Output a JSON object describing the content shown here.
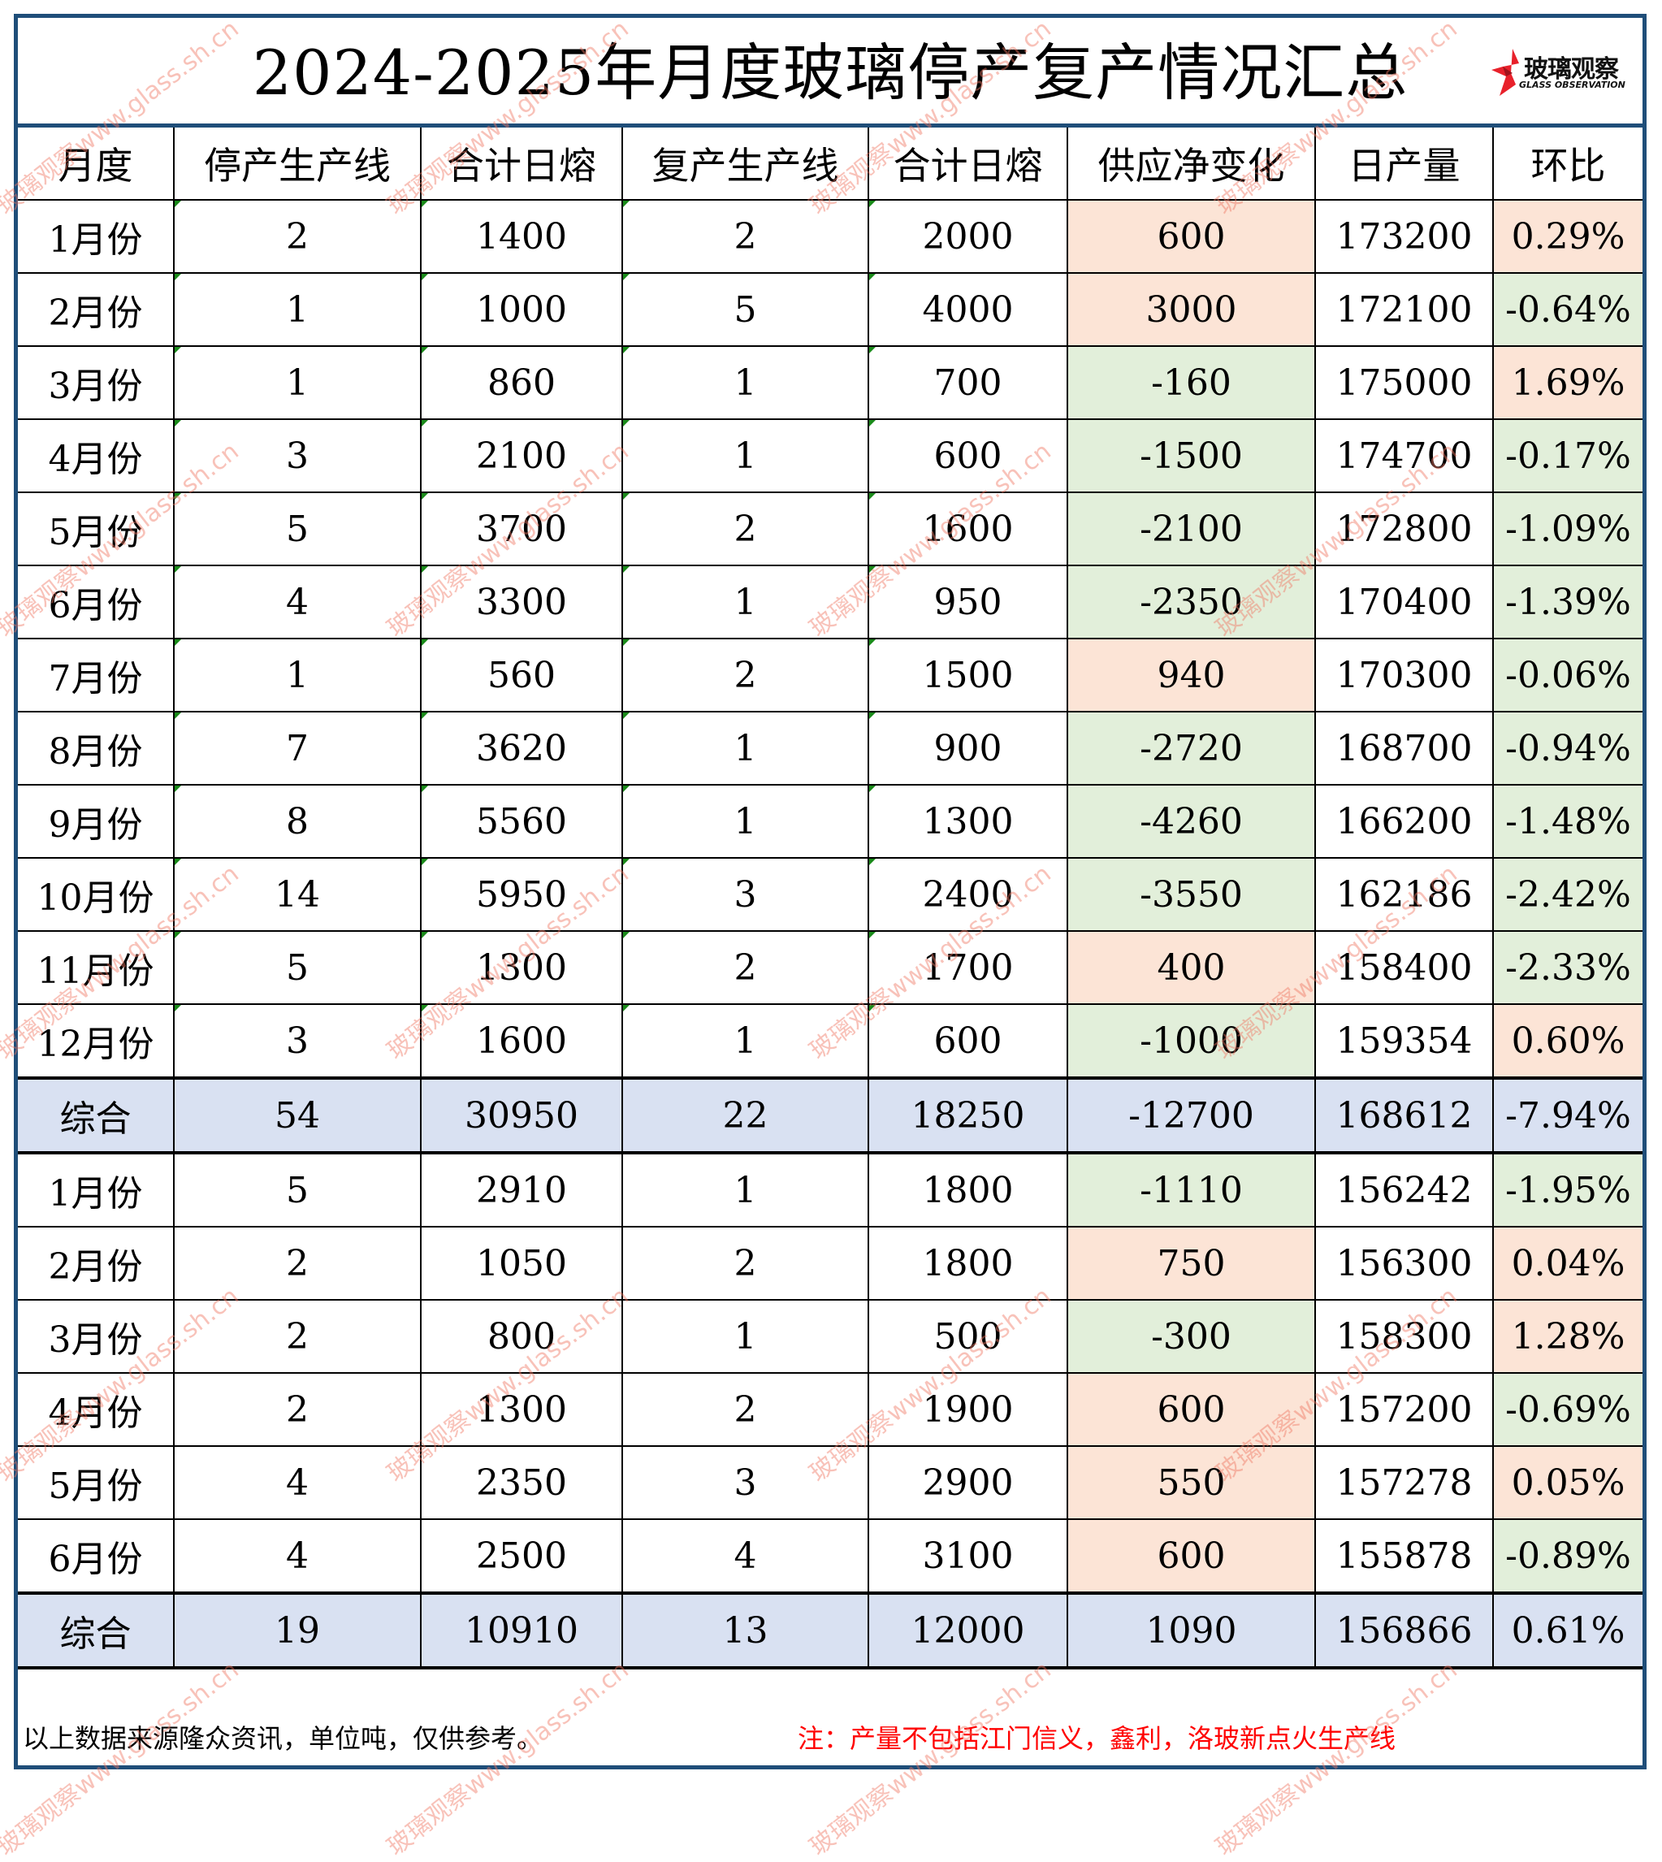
{
  "title": "2024-2025年月度玻璃停产复产情况汇总",
  "logo": {
    "icon": "red-star-logo-icon",
    "name_cn": "玻璃观察",
    "name_en": "GLASS OBSERVATION"
  },
  "colors": {
    "frame": "#1f4e79",
    "positive_fill": "#fce4d6",
    "negative_fill": "#e2efda",
    "summary_fill": "#d9e1f2",
    "note_text": "#ff0000"
  },
  "table": {
    "headers": [
      "月度",
      "停产生产线",
      "合计日熔",
      "复产生产线",
      "合计日熔",
      "供应净变化",
      "日产量",
      "环比"
    ],
    "rows": [
      {
        "month": "1月份",
        "stop_lines": "2",
        "stop_melt": "1400",
        "resume_lines": "2",
        "resume_melt": "2000",
        "net_change": "600",
        "daily_output": "173200",
        "mom": "0.29%"
      },
      {
        "month": "2月份",
        "stop_lines": "1",
        "stop_melt": "1000",
        "resume_lines": "5",
        "resume_melt": "4000",
        "net_change": "3000",
        "daily_output": "172100",
        "mom": "-0.64%"
      },
      {
        "month": "3月份",
        "stop_lines": "1",
        "stop_melt": "860",
        "resume_lines": "1",
        "resume_melt": "700",
        "net_change": "-160",
        "daily_output": "175000",
        "mom": "1.69%"
      },
      {
        "month": "4月份",
        "stop_lines": "3",
        "stop_melt": "2100",
        "resume_lines": "1",
        "resume_melt": "600",
        "net_change": "-1500",
        "daily_output": "174700",
        "mom": "-0.17%"
      },
      {
        "month": "5月份",
        "stop_lines": "5",
        "stop_melt": "3700",
        "resume_lines": "2",
        "resume_melt": "1600",
        "net_change": "-2100",
        "daily_output": "172800",
        "mom": "-1.09%"
      },
      {
        "month": "6月份",
        "stop_lines": "4",
        "stop_melt": "3300",
        "resume_lines": "1",
        "resume_melt": "950",
        "net_change": "-2350",
        "daily_output": "170400",
        "mom": "-1.39%"
      },
      {
        "month": "7月份",
        "stop_lines": "1",
        "stop_melt": "560",
        "resume_lines": "2",
        "resume_melt": "1500",
        "net_change": "940",
        "daily_output": "170300",
        "mom": "-0.06%"
      },
      {
        "month": "8月份",
        "stop_lines": "7",
        "stop_melt": "3620",
        "resume_lines": "1",
        "resume_melt": "900",
        "net_change": "-2720",
        "daily_output": "168700",
        "mom": "-0.94%"
      },
      {
        "month": "9月份",
        "stop_lines": "8",
        "stop_melt": "5560",
        "resume_lines": "1",
        "resume_melt": "1300",
        "net_change": "-4260",
        "daily_output": "166200",
        "mom": "-1.48%"
      },
      {
        "month": "10月份",
        "stop_lines": "14",
        "stop_melt": "5950",
        "resume_lines": "3",
        "resume_melt": "2400",
        "net_change": "-3550",
        "daily_output": "162186",
        "mom": "-2.42%"
      },
      {
        "month": "11月份",
        "stop_lines": "5",
        "stop_melt": "1300",
        "resume_lines": "2",
        "resume_melt": "1700",
        "net_change": "400",
        "daily_output": "158400",
        "mom": "-2.33%"
      },
      {
        "month": "12月份",
        "stop_lines": "3",
        "stop_melt": "1600",
        "resume_lines": "1",
        "resume_melt": "600",
        "net_change": "-1000",
        "daily_output": "159354",
        "mom": "0.60%"
      },
      {
        "month": "综合",
        "stop_lines": "54",
        "stop_melt": "30950",
        "resume_lines": "22",
        "resume_melt": "18250",
        "net_change": "-12700",
        "daily_output": "168612",
        "mom": "-7.94%"
      },
      {
        "month": "1月份",
        "stop_lines": "5",
        "stop_melt": "2910",
        "resume_lines": "1",
        "resume_melt": "1800",
        "net_change": "-1110",
        "daily_output": "156242",
        "mom": "-1.95%"
      },
      {
        "month": "2月份",
        "stop_lines": "2",
        "stop_melt": "1050",
        "resume_lines": "2",
        "resume_melt": "1800",
        "net_change": "750",
        "daily_output": "156300",
        "mom": "0.04%"
      },
      {
        "month": "3月份",
        "stop_lines": "2",
        "stop_melt": "800",
        "resume_lines": "1",
        "resume_melt": "500",
        "net_change": "-300",
        "daily_output": "158300",
        "mom": "1.28%"
      },
      {
        "month": "4月份",
        "stop_lines": "2",
        "stop_melt": "1300",
        "resume_lines": "2",
        "resume_melt": "1900",
        "net_change": "600",
        "daily_output": "157200",
        "mom": "-0.69%"
      },
      {
        "month": "5月份",
        "stop_lines": "4",
        "stop_melt": "2350",
        "resume_lines": "3",
        "resume_melt": "2900",
        "net_change": "550",
        "daily_output": "157278",
        "mom": "0.05%"
      },
      {
        "month": "6月份",
        "stop_lines": "4",
        "stop_melt": "2500",
        "resume_lines": "4",
        "resume_melt": "3100",
        "net_change": "600",
        "daily_output": "155878",
        "mom": "-0.89%"
      },
      {
        "month": "综合",
        "stop_lines": "19",
        "stop_melt": "10910",
        "resume_lines": "13",
        "resume_melt": "12000",
        "net_change": "1090",
        "daily_output": "156866",
        "mom": "0.61%"
      }
    ]
  },
  "footer": {
    "source": "以上数据来源隆众资讯，单位吨，仅供参考。",
    "note": "注：产量不包括江门信义，鑫利，洛玻新点火生产线"
  },
  "watermark": "玻璃观察www.glass.sh.cn"
}
